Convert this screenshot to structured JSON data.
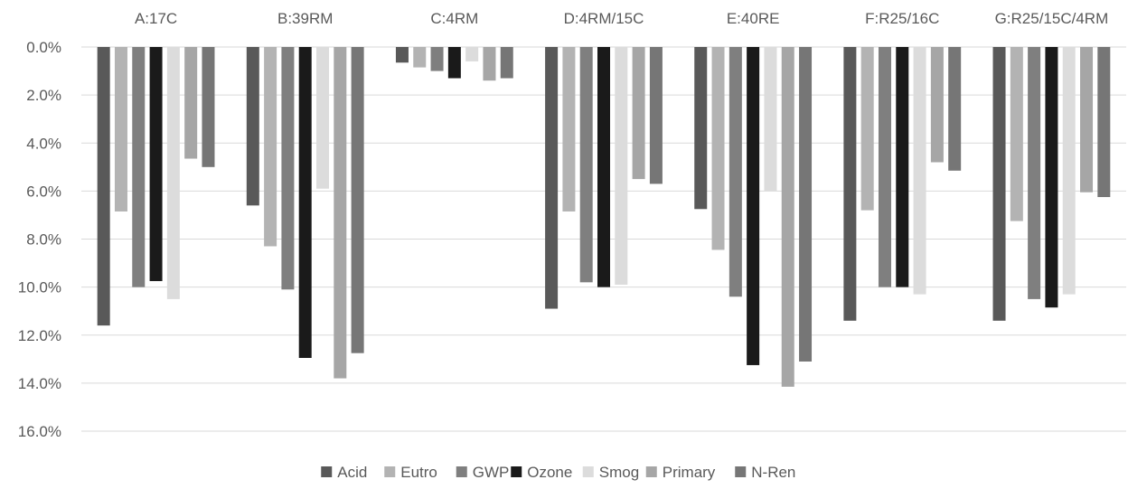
{
  "chart_data": {
    "type": "bar",
    "orientation": "vertical",
    "y_axis_reversed": true,
    "title": "",
    "xlabel": "",
    "ylabel": "",
    "ylim": [
      0,
      16
    ],
    "y_tick_values": [
      0,
      2,
      4,
      6,
      8,
      10,
      12,
      14,
      16
    ],
    "y_tick_labels": [
      "0.0%",
      "2.0%",
      "4.0%",
      "6.0%",
      "8.0%",
      "10.0%",
      "12.0%",
      "14.0%",
      "16.0%"
    ],
    "grid": true,
    "legend_position": "bottom",
    "categories": [
      "A:17C",
      "B:39RM",
      "C:4RM",
      "D:4RM/15C",
      "E:40RE",
      "F:R25/16C",
      "G:R25/15C/4RM"
    ],
    "series": [
      {
        "name": "Acid",
        "color": "#595959",
        "values": [
          11.6,
          6.6,
          0.65,
          10.9,
          6.75,
          11.4,
          11.4
        ]
      },
      {
        "name": "Eutro",
        "color": "#b3b3b3",
        "values": [
          6.85,
          8.3,
          0.85,
          6.85,
          8.45,
          6.8,
          7.25
        ]
      },
      {
        "name": "GWP",
        "color": "#7f7f7f",
        "values": [
          10.0,
          10.1,
          1.0,
          9.8,
          10.4,
          10.0,
          10.5
        ]
      },
      {
        "name": "Ozone",
        "color": "#1a1a1a",
        "values": [
          9.75,
          12.95,
          1.3,
          10.0,
          13.25,
          10.0,
          10.85
        ]
      },
      {
        "name": "Smog",
        "color": "#dcdcdc",
        "values": [
          10.5,
          5.9,
          0.6,
          9.9,
          6.0,
          10.3,
          10.3
        ]
      },
      {
        "name": "Primary",
        "color": "#a6a6a6",
        "values": [
          4.65,
          13.8,
          1.4,
          5.5,
          14.15,
          4.8,
          6.05
        ]
      },
      {
        "name": "N-Ren",
        "color": "#767676",
        "values": [
          5.0,
          12.75,
          1.3,
          5.7,
          13.1,
          5.15,
          6.25
        ]
      }
    ]
  }
}
